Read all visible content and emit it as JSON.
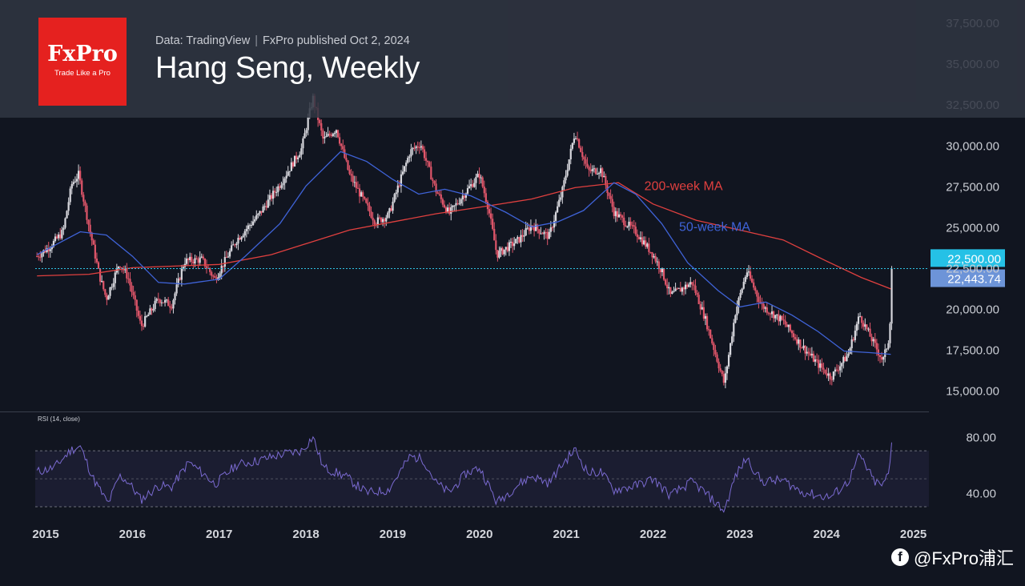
{
  "header": {
    "source": "Data: TradingView",
    "published": "FxPro published Oct 2, 2024",
    "title": "Hang Seng, Weekly"
  },
  "logo": {
    "brand": "FxPro",
    "tagline": "Trade Like a Pro"
  },
  "watermark": {
    "icon": "facebook-icon",
    "text": "@FxPro浦汇"
  },
  "colors": {
    "background": "#111520",
    "up": "#d8d8de",
    "down": "#e0566a",
    "ma200": "#e0403f",
    "ma50": "#3f63d8",
    "level_line": "#2fc4e6",
    "rsi_line": "#7a6ad0",
    "rsi_band": "#7a6ad0",
    "price_tag": "#2fc4e6"
  },
  "chart_data": [
    {
      "type": "candlestick",
      "title": "Hang Seng, Weekly",
      "x_axis": {
        "ticks": [
          "2015",
          "2016",
          "2017",
          "2018",
          "2019",
          "2020",
          "2021",
          "2022",
          "2023",
          "2024",
          "2025"
        ],
        "range": [
          2014.88,
          2025.05
        ]
      },
      "y_axis": {
        "ticks": [
          "15,000.00",
          "17,500.00",
          "20,000.00",
          "22,500.00",
          "25,000.00",
          "27,500.00",
          "30,000.00",
          "32,500.00",
          "35,000.00",
          "37,500.00"
        ],
        "range": [
          13800,
          37900
        ]
      },
      "price_path": [
        [
          2014.9,
          23200
        ],
        [
          2015.05,
          23800
        ],
        [
          2015.2,
          24700
        ],
        [
          2015.3,
          27600
        ],
        [
          2015.38,
          28200
        ],
        [
          2015.5,
          25000
        ],
        [
          2015.62,
          22000
        ],
        [
          2015.7,
          20600
        ],
        [
          2015.85,
          22800
        ],
        [
          2015.95,
          21900
        ],
        [
          2016.1,
          18900
        ],
        [
          2016.3,
          20600
        ],
        [
          2016.45,
          20200
        ],
        [
          2016.6,
          22900
        ],
        [
          2016.8,
          23000
        ],
        [
          2016.95,
          21800
        ],
        [
          2017.2,
          24200
        ],
        [
          2017.45,
          25700
        ],
        [
          2017.7,
          27600
        ],
        [
          2017.95,
          29800
        ],
        [
          2018.08,
          32900
        ],
        [
          2018.2,
          30300
        ],
        [
          2018.35,
          31000
        ],
        [
          2018.5,
          28200
        ],
        [
          2018.8,
          25300
        ],
        [
          2018.95,
          25700
        ],
        [
          2019.2,
          29600
        ],
        [
          2019.32,
          30100
        ],
        [
          2019.5,
          27200
        ],
        [
          2019.65,
          25800
        ],
        [
          2019.85,
          27200
        ],
        [
          2020.0,
          28200
        ],
        [
          2020.1,
          26200
        ],
        [
          2020.2,
          23300
        ],
        [
          2020.45,
          24200
        ],
        [
          2020.6,
          25100
        ],
        [
          2020.8,
          24400
        ],
        [
          2020.95,
          27100
        ],
        [
          2021.1,
          30800
        ],
        [
          2021.25,
          28400
        ],
        [
          2021.4,
          28500
        ],
        [
          2021.55,
          25900
        ],
        [
          2021.8,
          24700
        ],
        [
          2022.0,
          23300
        ],
        [
          2022.1,
          22300
        ],
        [
          2022.2,
          20800
        ],
        [
          2022.45,
          21600
        ],
        [
          2022.6,
          19400
        ],
        [
          2022.82,
          15400
        ],
        [
          2022.95,
          19800
        ],
        [
          2023.08,
          22300
        ],
        [
          2023.25,
          20200
        ],
        [
          2023.5,
          19200
        ],
        [
          2023.7,
          17800
        ],
        [
          2023.9,
          16600
        ],
        [
          2024.05,
          15800
        ],
        [
          2024.25,
          17200
        ],
        [
          2024.38,
          19600
        ],
        [
          2024.55,
          17800
        ],
        [
          2024.65,
          16800
        ],
        [
          2024.72,
          18200
        ],
        [
          2024.75,
          21100
        ],
        [
          2024.76,
          22443.74
        ]
      ],
      "series": [
        {
          "name": "200-week MA",
          "points": [
            [
              2014.9,
              22000
            ],
            [
              2015.5,
              22100
            ],
            [
              2016.0,
              22500
            ],
            [
              2017.0,
              22700
            ],
            [
              2017.6,
              23300
            ],
            [
              2018.5,
              24800
            ],
            [
              2019.0,
              25300
            ],
            [
              2019.5,
              25800
            ],
            [
              2020.0,
              26200
            ],
            [
              2020.6,
              26700
            ],
            [
              2021.1,
              27400
            ],
            [
              2021.6,
              27700
            ],
            [
              2022.0,
              26400
            ],
            [
              2022.5,
              25400
            ],
            [
              2023.0,
              24800
            ],
            [
              2023.5,
              24200
            ],
            [
              2024.0,
              22900
            ],
            [
              2024.4,
              21900
            ],
            [
              2024.74,
              21200
            ]
          ]
        },
        {
          "name": "50-week MA",
          "points": [
            [
              2014.9,
              23300
            ],
            [
              2015.4,
              24700
            ],
            [
              2015.7,
              24500
            ],
            [
              2016.0,
              23200
            ],
            [
              2016.3,
              21600
            ],
            [
              2016.6,
              21500
            ],
            [
              2017.0,
              21800
            ],
            [
              2017.3,
              23200
            ],
            [
              2017.7,
              25200
            ],
            [
              2018.0,
              27500
            ],
            [
              2018.4,
              29600
            ],
            [
              2018.7,
              29000
            ],
            [
              2019.0,
              27900
            ],
            [
              2019.3,
              27000
            ],
            [
              2019.6,
              27300
            ],
            [
              2019.9,
              26900
            ],
            [
              2020.3,
              25900
            ],
            [
              2020.6,
              25000
            ],
            [
              2020.9,
              25300
            ],
            [
              2021.2,
              26000
            ],
            [
              2021.55,
              27700
            ],
            [
              2021.8,
              27000
            ],
            [
              2022.1,
              25200
            ],
            [
              2022.4,
              22800
            ],
            [
              2022.75,
              21100
            ],
            [
              2023.0,
              20100
            ],
            [
              2023.3,
              20400
            ],
            [
              2023.6,
              19600
            ],
            [
              2023.9,
              18600
            ],
            [
              2024.2,
              17400
            ],
            [
              2024.5,
              17300
            ],
            [
              2024.74,
              17200
            ]
          ]
        }
      ],
      "annotations": [
        {
          "text": "200-week MA",
          "x": 2021.9,
          "y": 27500
        },
        {
          "text": "50-week MA",
          "x": 2022.3,
          "y": 25000
        }
      ],
      "horizontal_line": {
        "value": 22443.74
      },
      "price_tags": [
        {
          "text": "22,500.00",
          "value": 22500
        },
        {
          "text": "22,443.74",
          "value": 22443.74
        }
      ]
    },
    {
      "type": "line",
      "title": "RSI (14, close)",
      "y_axis": {
        "ticks": [
          "40.00",
          "80.00"
        ],
        "range": [
          26,
          89
        ]
      },
      "band": [
        30,
        70
      ],
      "midline": 50,
      "rsi_path": [
        [
          2014.9,
          55
        ],
        [
          2015.1,
          58
        ],
        [
          2015.3,
          71
        ],
        [
          2015.4,
          73
        ],
        [
          2015.55,
          50
        ],
        [
          2015.72,
          32
        ],
        [
          2015.85,
          52
        ],
        [
          2015.95,
          48
        ],
        [
          2016.1,
          35
        ],
        [
          2016.3,
          45
        ],
        [
          2016.45,
          44
        ],
        [
          2016.65,
          62
        ],
        [
          2016.85,
          52
        ],
        [
          2016.95,
          46
        ],
        [
          2017.2,
          60
        ],
        [
          2017.45,
          63
        ],
        [
          2017.75,
          68
        ],
        [
          2017.95,
          70
        ],
        [
          2018.08,
          80
        ],
        [
          2018.2,
          58
        ],
        [
          2018.45,
          52
        ],
        [
          2018.7,
          40
        ],
        [
          2018.95,
          42
        ],
        [
          2019.2,
          66
        ],
        [
          2019.35,
          64
        ],
        [
          2019.5,
          47
        ],
        [
          2019.65,
          40
        ],
        [
          2019.85,
          54
        ],
        [
          2020.0,
          58
        ],
        [
          2020.1,
          46
        ],
        [
          2020.2,
          33
        ],
        [
          2020.45,
          46
        ],
        [
          2020.6,
          52
        ],
        [
          2020.8,
          47
        ],
        [
          2020.95,
          60
        ],
        [
          2021.1,
          71
        ],
        [
          2021.25,
          54
        ],
        [
          2021.4,
          55
        ],
        [
          2021.55,
          42
        ],
        [
          2021.8,
          45
        ],
        [
          2022.0,
          50
        ],
        [
          2022.1,
          44
        ],
        [
          2022.2,
          38
        ],
        [
          2022.45,
          48
        ],
        [
          2022.6,
          40
        ],
        [
          2022.82,
          27
        ],
        [
          2022.95,
          52
        ],
        [
          2023.08,
          65
        ],
        [
          2023.25,
          48
        ],
        [
          2023.5,
          49
        ],
        [
          2023.7,
          41
        ],
        [
          2023.9,
          38
        ],
        [
          2024.05,
          37
        ],
        [
          2024.25,
          48
        ],
        [
          2024.38,
          67
        ],
        [
          2024.55,
          48
        ],
        [
          2024.65,
          45
        ],
        [
          2024.72,
          55
        ],
        [
          2024.76,
          76
        ]
      ]
    }
  ]
}
